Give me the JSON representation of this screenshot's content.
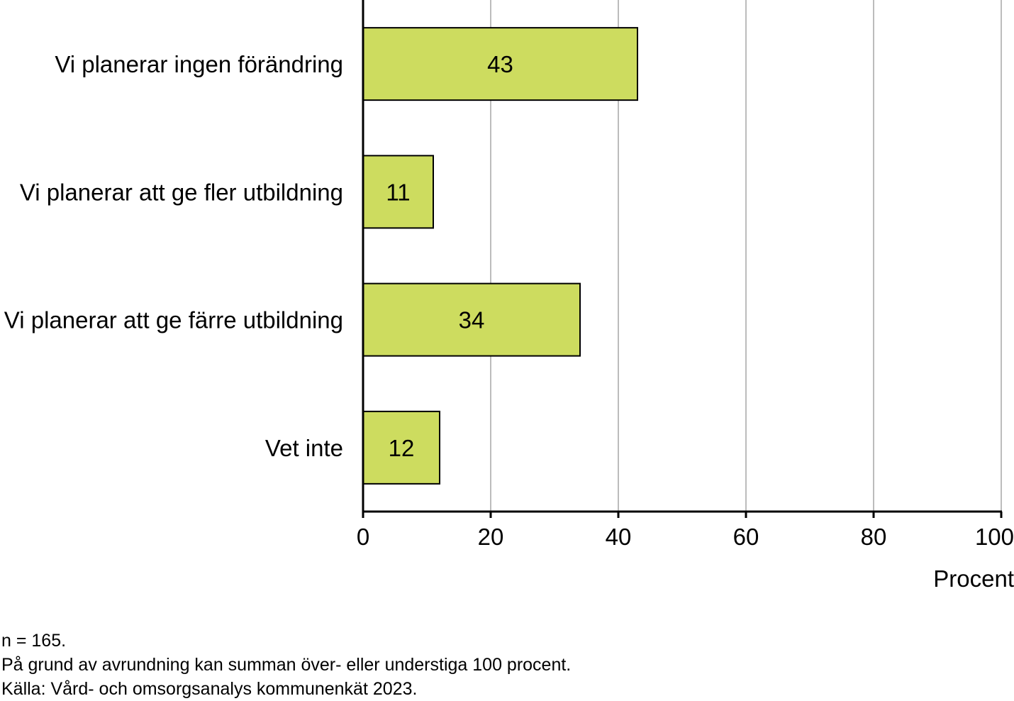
{
  "chart_data": {
    "type": "bar",
    "orientation": "horizontal",
    "categories": [
      "Vi planerar ingen förändring",
      "Vi planerar att ge fler utbildning",
      "Vi planerar att ge färre utbildning",
      "Vet inte"
    ],
    "values": [
      43,
      11,
      34,
      12
    ],
    "data_labels": [
      "43",
      "11",
      "34",
      "12"
    ],
    "xlabel": "Procent",
    "xlim": [
      0,
      100
    ],
    "xticks": [
      0,
      20,
      40,
      60,
      80,
      100
    ],
    "grid": "vertical",
    "legend": "none",
    "bar_color": "#cddc5f",
    "bar_border_color": "#000000",
    "gridline_color": "#a6a6a6"
  },
  "notes": {
    "n": "n = 165.",
    "rounding": "På grund av avrundning kan summan över- eller understiga 100 procent.",
    "source": "Källa: Vård- och omsorgsanalys kommunenkät 2023."
  }
}
